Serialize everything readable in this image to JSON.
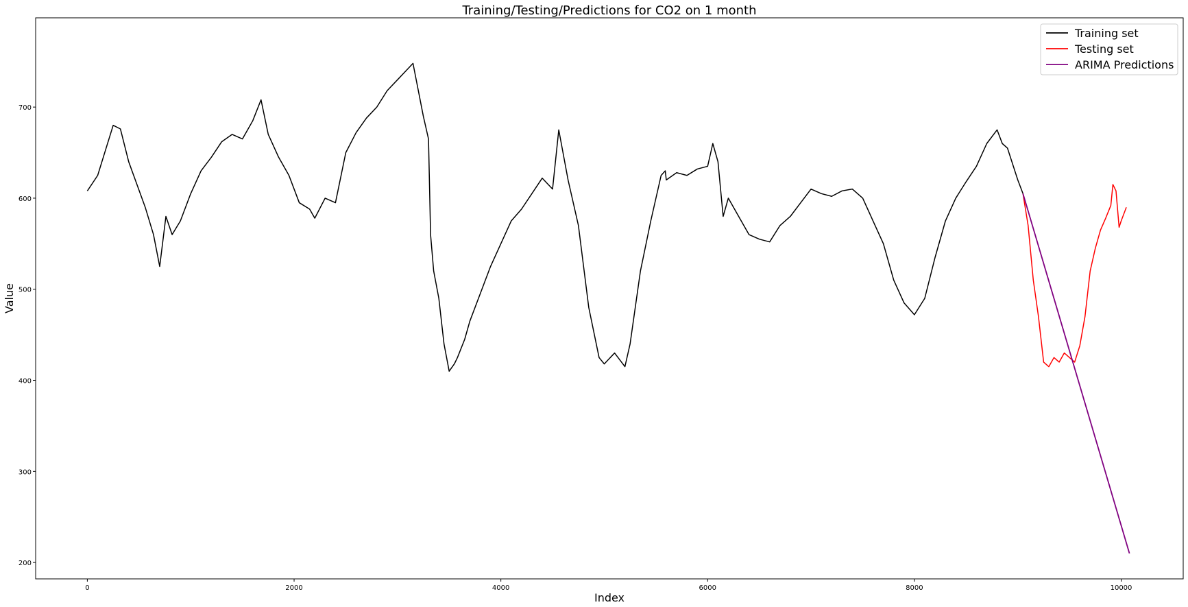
{
  "chart_data": {
    "type": "line",
    "title": "Training/Testing/Predictions for CO2 on 1 month",
    "xlabel": "Index",
    "ylabel": "Value",
    "xlim": [
      -500,
      10600
    ],
    "ylim": [
      182,
      798
    ],
    "xticks": [
      0,
      2000,
      4000,
      6000,
      8000,
      10000
    ],
    "yticks": [
      200,
      300,
      400,
      500,
      600,
      700
    ],
    "legend_position": "top-right",
    "series": [
      {
        "name": "Training set",
        "color": "#000000",
        "x": [
          0,
          100,
          250,
          320,
          400,
          480,
          560,
          640,
          700,
          760,
          820,
          900,
          1000,
          1100,
          1200,
          1300,
          1400,
          1500,
          1550,
          1600,
          1680,
          1750,
          1850,
          1950,
          2050,
          2150,
          2200,
          2300,
          2400,
          2500,
          2600,
          2700,
          2800,
          2900,
          3000,
          3100,
          3150,
          3250,
          3300,
          3320,
          3350,
          3400,
          3450,
          3500,
          3550,
          3580,
          3650,
          3700,
          3800,
          3900,
          4000,
          4100,
          4200,
          4300,
          4400,
          4500,
          4560,
          4650,
          4750,
          4850,
          4950,
          5000,
          5100,
          5200,
          5250,
          5350,
          5450,
          5550,
          5590,
          5600,
          5700,
          5800,
          5900,
          6000,
          6050,
          6100,
          6150,
          6200,
          6300,
          6400,
          6500,
          6600,
          6700,
          6800,
          6900,
          7000,
          7100,
          7200,
          7300,
          7400,
          7500,
          7600,
          7700,
          7800,
          7900,
          8000,
          8100,
          8200,
          8300,
          8400,
          8500,
          8600,
          8700,
          8800,
          8850,
          8900,
          9000,
          9050
        ],
        "y": [
          608,
          625,
          680,
          676,
          640,
          615,
          590,
          560,
          525,
          580,
          560,
          575,
          605,
          630,
          645,
          662,
          670,
          665,
          675,
          685,
          708,
          670,
          645,
          625,
          595,
          588,
          578,
          600,
          595,
          650,
          672,
          688,
          700,
          718,
          730,
          742,
          748,
          690,
          665,
          560,
          520,
          490,
          440,
          410,
          418,
          425,
          445,
          465,
          495,
          525,
          550,
          575,
          588,
          605,
          622,
          610,
          675,
          620,
          570,
          480,
          425,
          418,
          430,
          415,
          440,
          520,
          575,
          625,
          630,
          620,
          628,
          625,
          632,
          635,
          660,
          640,
          580,
          600,
          580,
          560,
          555,
          552,
          570,
          580,
          595,
          610,
          605,
          602,
          608,
          610,
          600,
          575,
          550,
          510,
          485,
          472,
          490,
          535,
          575,
          600,
          618,
          635,
          660,
          675,
          660,
          655,
          620,
          605
        ]
      },
      {
        "name": "Testing set",
        "color": "#ff0000",
        "x": [
          9050,
          9100,
          9150,
          9200,
          9250,
          9300,
          9350,
          9400,
          9450,
          9500,
          9550,
          9600,
          9650,
          9700,
          9750,
          9800,
          9850,
          9900,
          9920,
          9950,
          9980,
          10000,
          10050
        ],
        "y": [
          605,
          570,
          510,
          470,
          420,
          415,
          425,
          420,
          430,
          425,
          420,
          438,
          470,
          520,
          545,
          565,
          578,
          592,
          615,
          608,
          568,
          575,
          590
        ]
      },
      {
        "name": "ARIMA Predictions",
        "color": "#800080",
        "x": [
          9050,
          10080
        ],
        "y": [
          605,
          210
        ]
      }
    ]
  }
}
